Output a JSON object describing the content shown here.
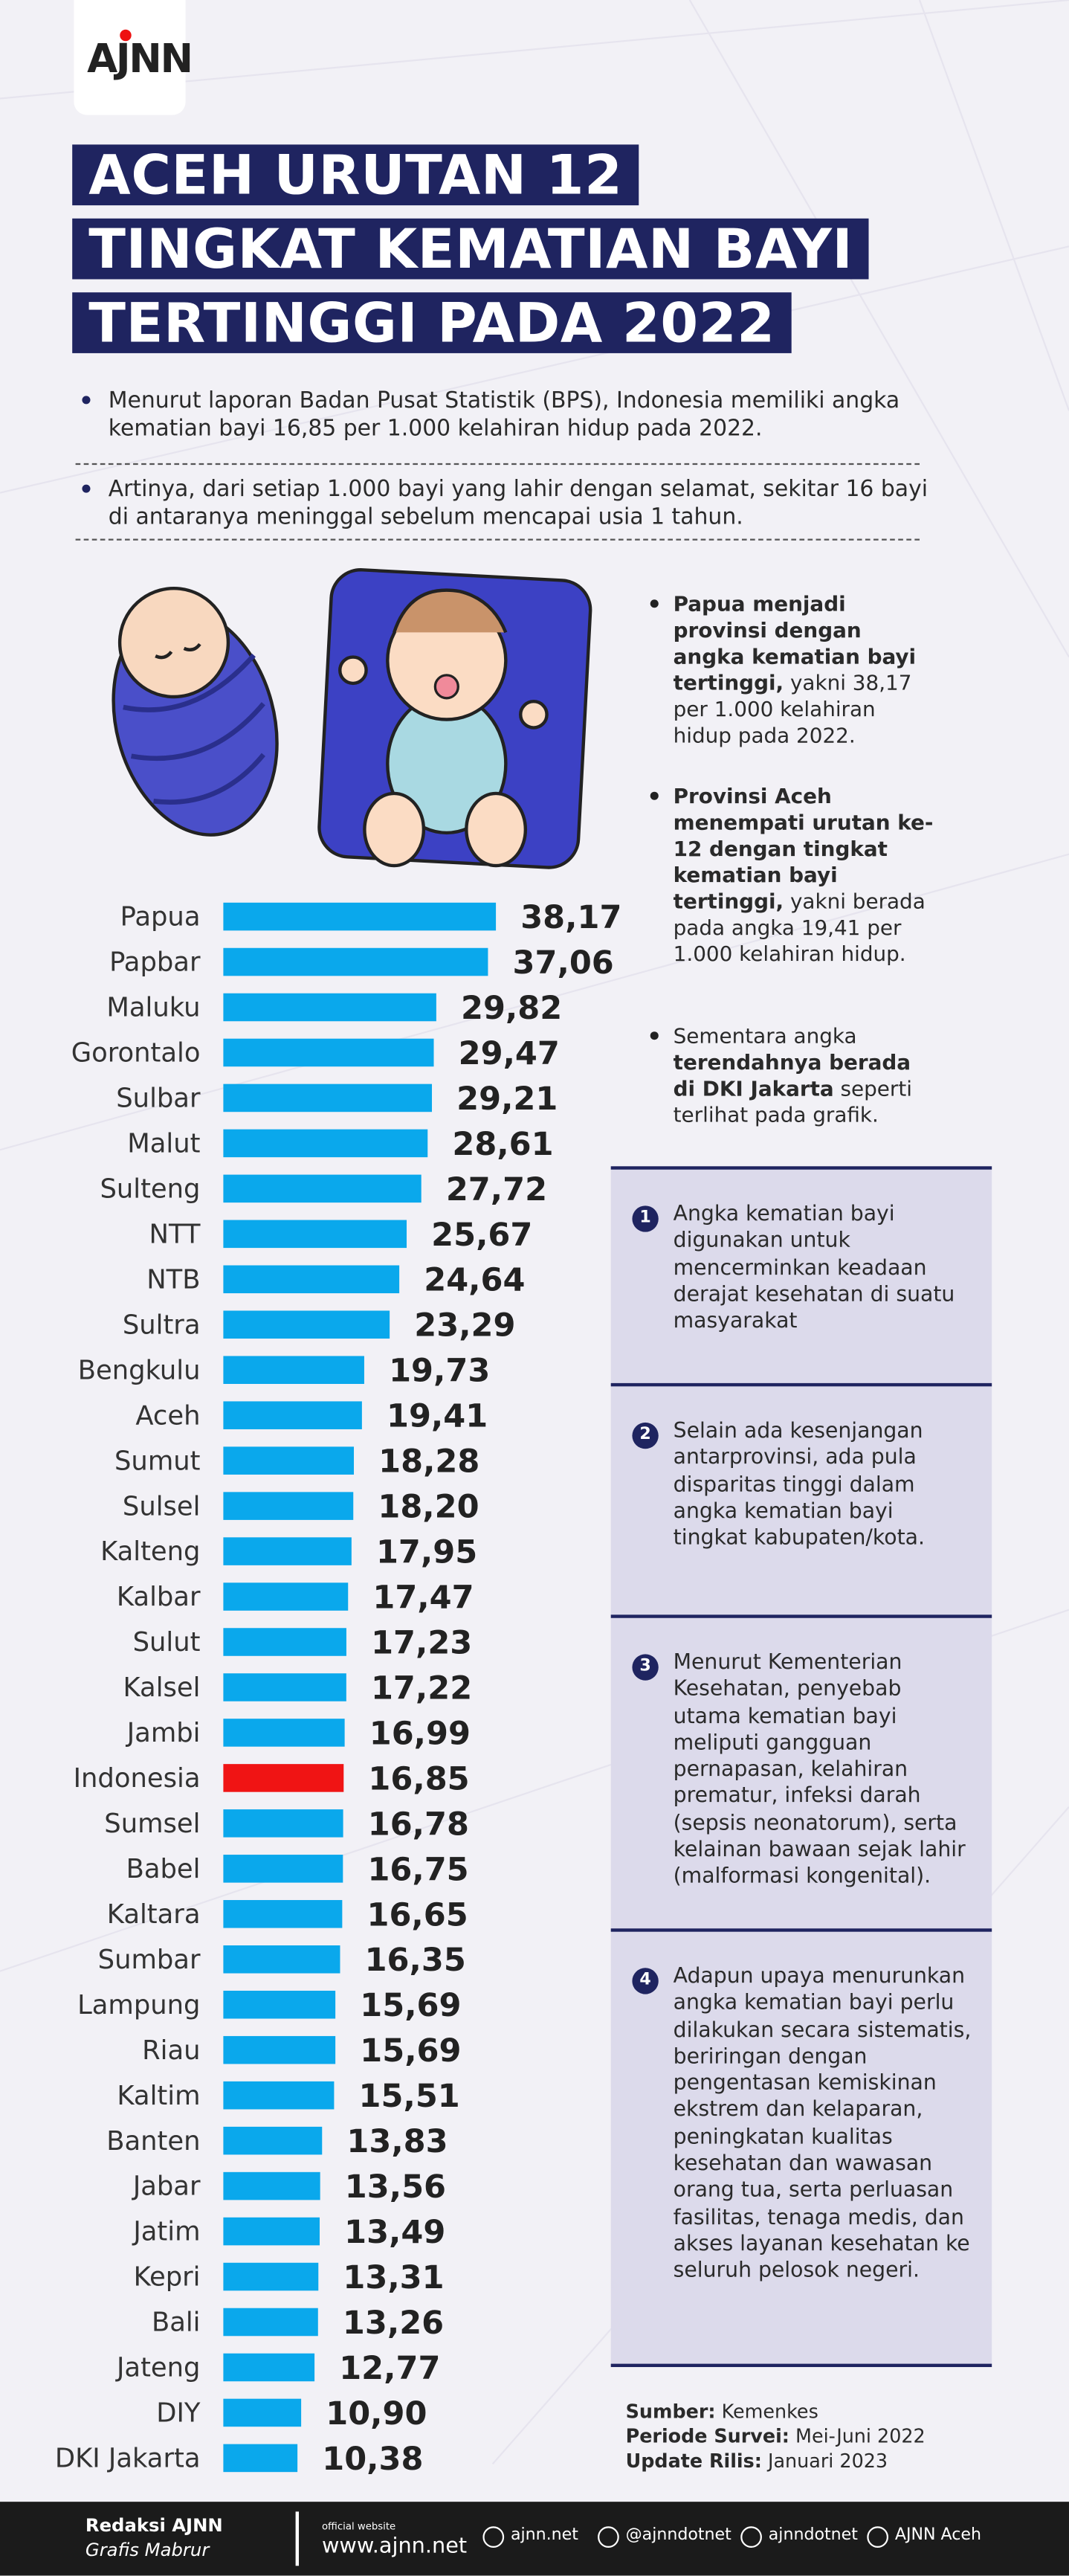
{
  "header": {
    "logo": "AJNN",
    "title_lines": [
      "ACEH URUTAN 12",
      "TINGKAT KEMATIAN BAYI",
      "TERTINGGI PADA 2022"
    ]
  },
  "intro": [
    "Menurut laporan Badan Pusat Statistik (BPS), Indonesia memiliki angka kematian bayi 16,85 per 1.000 kelahiran hidup pada 2022.",
    "Artinya, dari setiap 1.000 bayi yang lahir dengan selamat, sekitar 16 bayi di antaranya meninggal sebelum mencapai usia 1 tahun."
  ],
  "highlights": [
    [
      {
        "text": "Papua menjadi provinsi dengan angka kematian bayi tertinggi,",
        "bold": true
      },
      {
        "text": " yakni 38,17 per 1.000 kelahiran hidup pada 2022.",
        "bold": false
      }
    ],
    [
      {
        "text": "Provinsi Aceh menempati urutan ke-12 dengan tingkat kematian bayi tertinggi,",
        "bold": true
      },
      {
        "text": " yakni berada pada angka 19,41 per 1.000 kelahiran hidup.",
        "bold": false
      }
    ],
    [
      {
        "text": "Sementara angka ",
        "bold": false
      },
      {
        "text": "terendahnya berada di DKI Jakarta",
        "bold": true
      },
      {
        "text": " seperti terlihat pada grafik.",
        "bold": false
      }
    ]
  ],
  "chart_data": {
    "type": "bar",
    "orientation": "horizontal",
    "color": "#0aa8ec",
    "highlight": {
      "category": "Indonesia",
      "color": "#f01414"
    },
    "categories": [
      "Papua",
      "Papbar",
      "Maluku",
      "Gorontalo",
      "Sulbar",
      "Malut",
      "Sulteng",
      "NTT",
      "NTB",
      "Sultra",
      "Bengkulu",
      "Aceh",
      "Sumut",
      "Sulsel",
      "Kalteng",
      "Kalbar",
      "Sulut",
      "Kalsel",
      "Jambi",
      "Indonesia",
      "Sumsel",
      "Babel",
      "Kaltara",
      "Sumbar",
      "Lampung",
      "Riau",
      "Kaltim",
      "Banten",
      "Jabar",
      "Jatim",
      "Kepri",
      "Bali",
      "Jateng",
      "DIY",
      "DKI Jakarta"
    ],
    "values": [
      38.17,
      37.06,
      29.82,
      29.47,
      29.21,
      28.61,
      27.72,
      25.67,
      24.64,
      23.29,
      19.73,
      19.41,
      18.28,
      18.2,
      17.95,
      17.47,
      17.23,
      17.22,
      16.99,
      16.85,
      16.78,
      16.75,
      16.65,
      16.35,
      15.69,
      15.69,
      15.51,
      13.83,
      13.56,
      13.49,
      13.31,
      13.26,
      12.77,
      10.9,
      10.38
    ],
    "value_labels": [
      "38,17",
      "37,06",
      "29,82",
      "29,47",
      "29,21",
      "28,61",
      "27,72",
      "25,67",
      "24,64",
      "23,29",
      "19,73",
      "19,41",
      "18,28",
      "18,20",
      "17,95",
      "17,47",
      "17,23",
      "17,22",
      "16,99",
      "16,85",
      "16,78",
      "16,75",
      "16,65",
      "16,35",
      "15,69",
      "15,69",
      "15,51",
      "13,83",
      "13,56",
      "13,49",
      "13,31",
      "13,26",
      "12,77",
      "10,90",
      "10,38"
    ]
  },
  "facts": [
    {
      "number": "1",
      "text": "Angka kematian bayi digunakan untuk mencerminkan keadaan derajat kesehatan di suatu masyarakat"
    },
    {
      "number": "2",
      "text": "Selain ada kesenjangan antarprovinsi, ada pula disparitas tinggi dalam angka kematian bayi tingkat kabupaten/kota."
    },
    {
      "number": "3",
      "text": "Menurut Kementerian Kesehatan, penyebab utama kematian bayi meliputi gangguan pernapasan, kelahiran prematur, infeksi darah (sepsis neonatorum), serta kelainan bawaan sejak lahir (malformasi kongenital)."
    },
    {
      "number": "4",
      "text": "Adapun upaya menurunkan angka kematian bayi perlu dilakukan secara sistematis, beriringan dengan pengentasan kemiskinan ekstrem dan kelaparan, peningkatan kualitas kesehatan dan wawasan orang tua, serta perluasan fasilitas, tenaga medis, dan akses layanan kesehatan ke seluruh pelosok negeri."
    }
  ],
  "source": [
    {
      "label": "Sumber:",
      "value": " Kemenkes"
    },
    {
      "label": "Periode Survei:",
      "value": " Mei-Juni 2022"
    },
    {
      "label": "Update Rilis:",
      "value": " Januari 2023"
    }
  ],
  "footer": {
    "credit": "Redaksi AJNN",
    "designer": "Grafis Mabrur",
    "website_label": "official website",
    "website": "www.ajnn.net",
    "socials": [
      "ajnn.net",
      "@ajnndotnet",
      "ajnndotnet",
      "AJNN Aceh"
    ]
  }
}
